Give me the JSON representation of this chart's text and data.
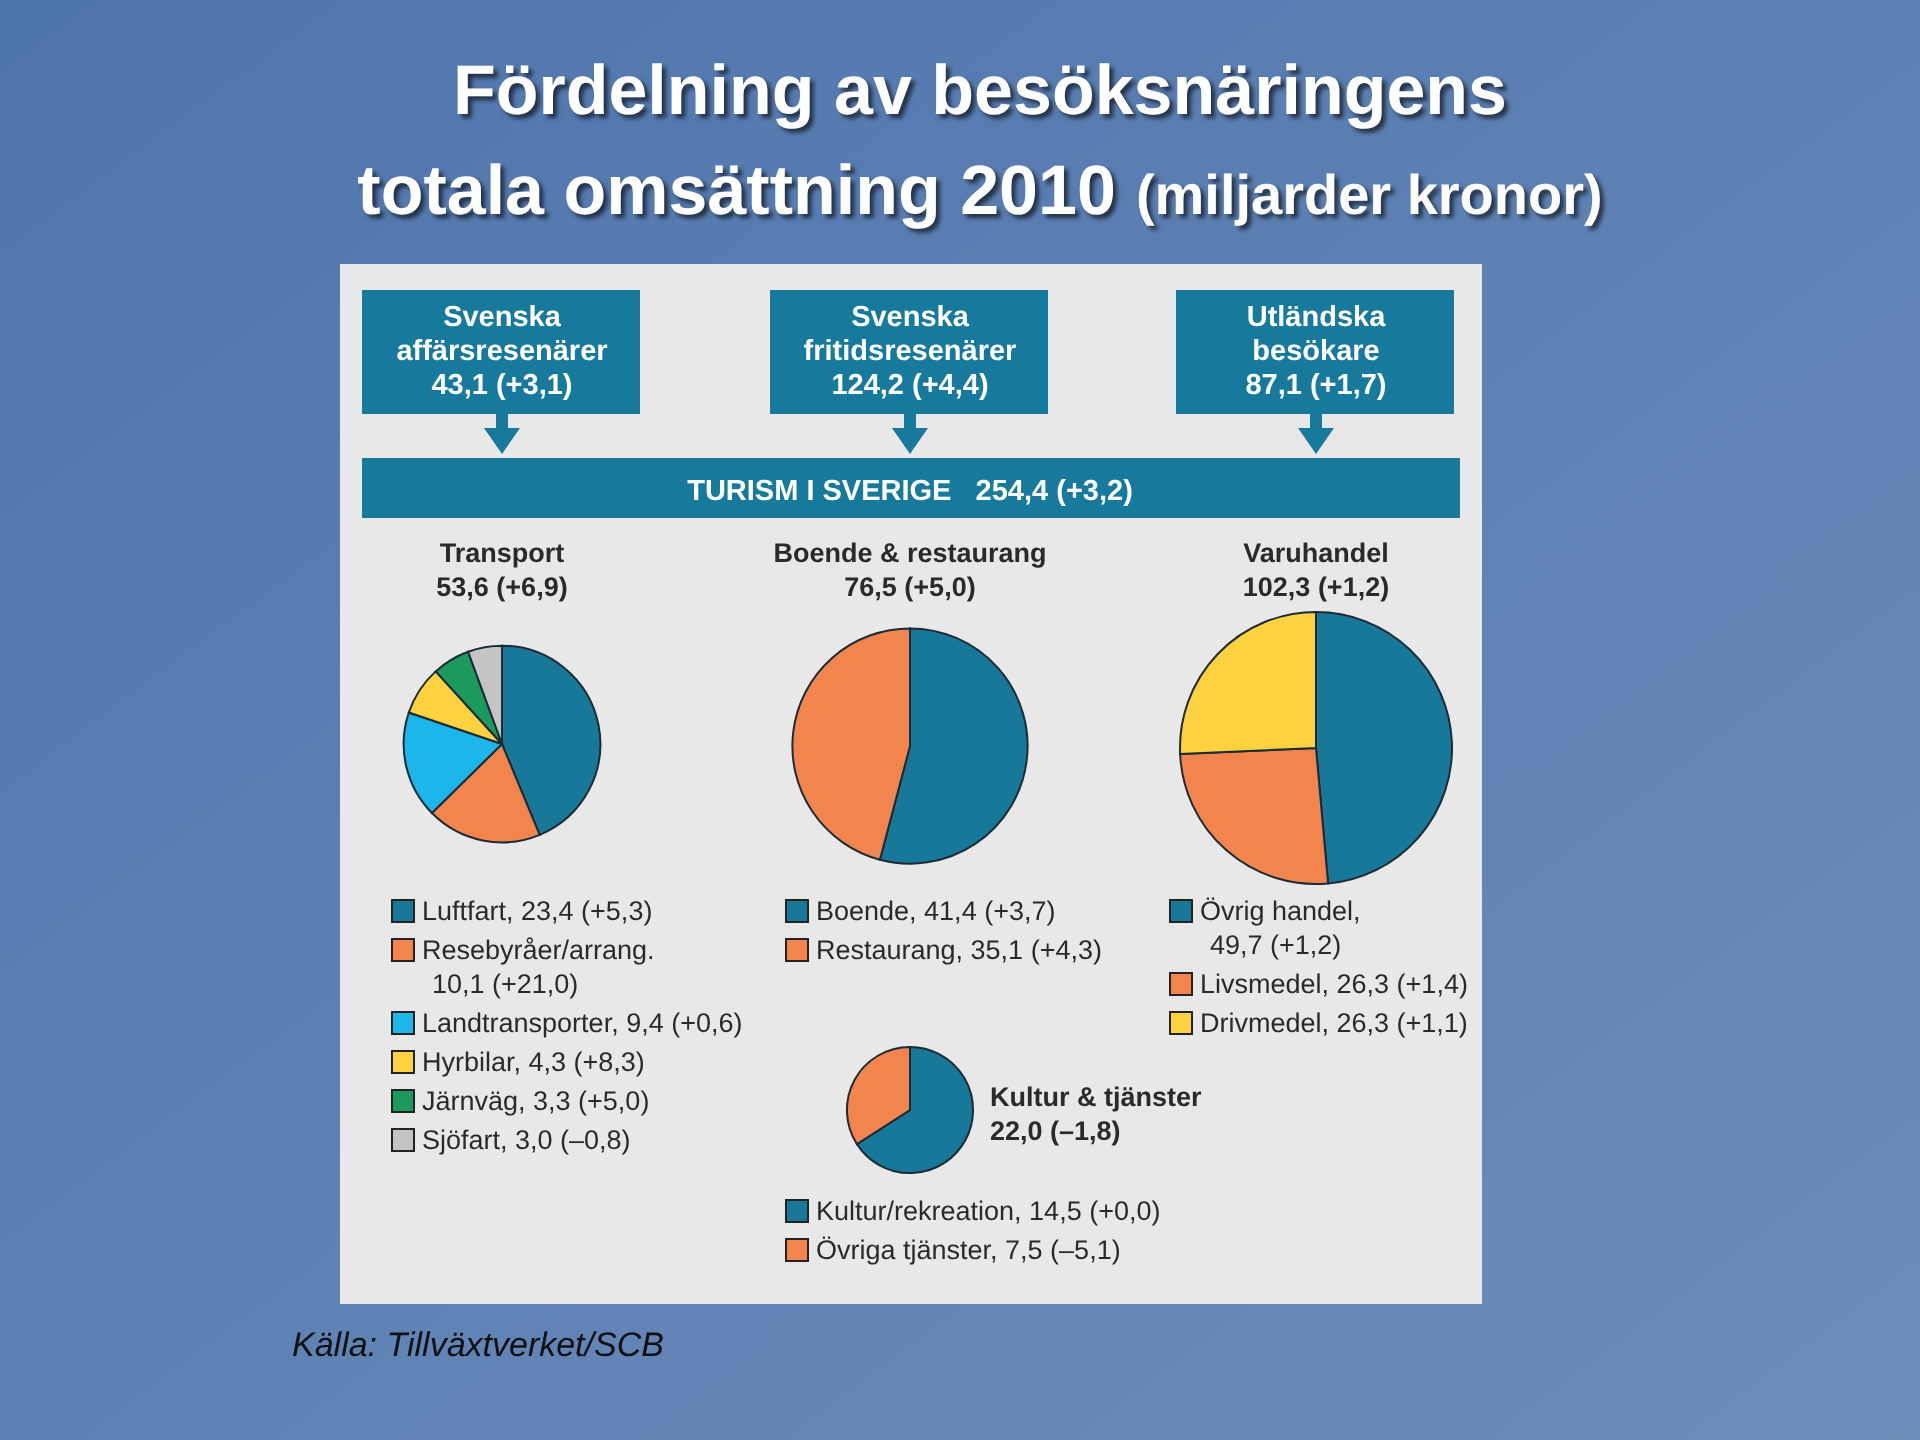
{
  "chart_data": [
    {
      "type": "other",
      "title": "Fördelning av besöksnäringens\ntotala omsättning 2010",
      "subtitle": "(miljarder kronor)",
      "annotations": [
        "Svenska\naffärsresenärer\n43,1 (+3,1)",
        "Svenska\nfritidsresenärer\n124,2 (+4,4)",
        "Utländska\nbesökare\n87,1 (+1,7)",
        "TURISM I SVERIGE   254,4 (+3,2)",
        "Källa: Tillväxtverket/SCB"
      ]
    },
    {
      "type": "pie",
      "title": "Transport",
      "subtitle": "53,6 (+6,9)",
      "legend": "bottom",
      "categories": [
        "Luftfart, 23,4 (+5,3)",
        "Resebyråer/arrang.\n10,1 (+21,0)",
        "Landtransporter, 9,4 (+0,6)",
        "Hyrbilar, 4,3 (+8,3)",
        "Järnväg, 3,3 (+5,0)",
        "Sjöfart, 3,0 (–0,8)"
      ],
      "values": [
        23.4,
        10.1,
        9.4,
        4.3,
        3.3,
        3.0
      ],
      "colors": [
        "#18789a",
        "#f2844e",
        "#1cb6ea",
        "#fdd13f",
        "#1c9a5e",
        "#c4c4c4"
      ]
    },
    {
      "type": "pie",
      "title": "Boende & restaurang",
      "subtitle": "76,5 (+5,0)",
      "legend": "bottom",
      "categories": [
        "Boende, 41,4 (+3,7)",
        "Restaurang, 35,1 (+4,3)"
      ],
      "values": [
        41.4,
        35.1
      ],
      "colors": [
        "#18789a",
        "#f2844e"
      ]
    },
    {
      "type": "pie",
      "title": "Varuhandel",
      "subtitle": "102,3 (+1,2)",
      "legend": "bottom",
      "categories": [
        "Övrig handel,\n49,7 (+1,2)",
        "Livsmedel, 26,3 (+1,4)",
        "Drivmedel, 26,3 (+1,1)"
      ],
      "values": [
        49.7,
        26.3,
        26.3
      ],
      "colors": [
        "#18789a",
        "#f2844e",
        "#fdd13f"
      ]
    },
    {
      "type": "pie",
      "title": "Kultur & tjänster",
      "subtitle": "22,0 (–1,8)",
      "legend": "bottom",
      "categories": [
        "Kultur/rekreation, 14,5 (+0,0)",
        "Övriga tjänster, 7,5 (–5,1)"
      ],
      "values": [
        14.5,
        7.5
      ],
      "colors": [
        "#18789a",
        "#f2844e"
      ]
    }
  ]
}
